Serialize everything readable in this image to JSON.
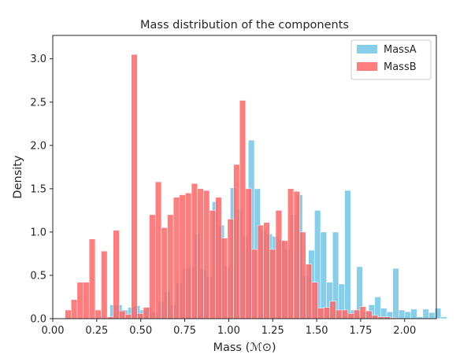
{
  "chart_data": {
    "type": "histogram",
    "title": "Mass distribution of the components",
    "xlabel": "Mass (ℳ⊙)",
    "ylabel": "Density",
    "xlim": [
      0.0,
      2.18
    ],
    "ylim": [
      0.0,
      3.27
    ],
    "xticks": [
      "0.00",
      "0.25",
      "0.50",
      "0.75",
      "1.00",
      "1.25",
      "1.50",
      "1.75",
      "2.00"
    ],
    "xtick_values": [
      0.0,
      0.25,
      0.5,
      0.75,
      1.0,
      1.25,
      1.5,
      1.75,
      2.0
    ],
    "yticks": [
      "0.0",
      "0.5",
      "1.0",
      "1.5",
      "2.0",
      "2.5",
      "3.0"
    ],
    "ytick_values": [
      0.0,
      0.5,
      1.0,
      1.5,
      2.0,
      2.5,
      3.0
    ],
    "grid": false,
    "legend_position": "top-right",
    "series": [
      {
        "name": "MassA",
        "color": "#87CEEB",
        "opacity": 1.0,
        "bin_start": 0.325,
        "bin_width": 0.0342,
        "values": [
          0.16,
          0.16,
          0.1,
          0.13,
          0.15,
          0.1,
          0.13,
          0.08,
          0.2,
          0.31,
          0.16,
          0.41,
          0.58,
          0.6,
          0.98,
          0.57,
          0.49,
          1.35,
          1.08,
          0.6,
          1.51,
          1.26,
          0.96,
          2.06,
          1.5,
          1.02,
          0.98,
          0.95,
          0.91,
          0.8,
          1.2,
          1.43,
          0.5,
          0.79,
          1.25,
          1.0,
          0.42,
          1.0,
          0.4,
          1.48,
          0.1,
          0.6,
          0.08,
          0.16,
          0.25,
          0.12,
          0.08,
          0.58,
          0.1,
          0.08,
          0.11,
          0.02,
          0.11,
          0.07,
          0.12,
          0.02
        ]
      },
      {
        "name": "MassB",
        "color": "#FF6666",
        "opacity": 0.85,
        "bin_start": 0.07,
        "bin_width": 0.0342,
        "values": [
          0.1,
          0.22,
          0.42,
          0.42,
          0.92,
          0.1,
          0.78,
          0.02,
          1.02,
          0.09,
          0.05,
          3.05,
          0.06,
          0.13,
          1.2,
          1.58,
          1.05,
          1.2,
          1.4,
          1.43,
          1.45,
          1.56,
          1.5,
          1.48,
          1.25,
          1.4,
          0.93,
          1.15,
          1.78,
          2.52,
          1.5,
          0.8,
          1.08,
          1.11,
          0.8,
          1.25,
          0.9,
          1.5,
          1.47,
          1.0,
          0.63,
          0.42,
          0.12,
          0.13,
          0.2,
          0.1,
          0.1,
          0.06,
          0.1,
          0.14,
          0.09,
          0.04,
          0.02,
          0.02,
          0.01
        ]
      }
    ]
  }
}
